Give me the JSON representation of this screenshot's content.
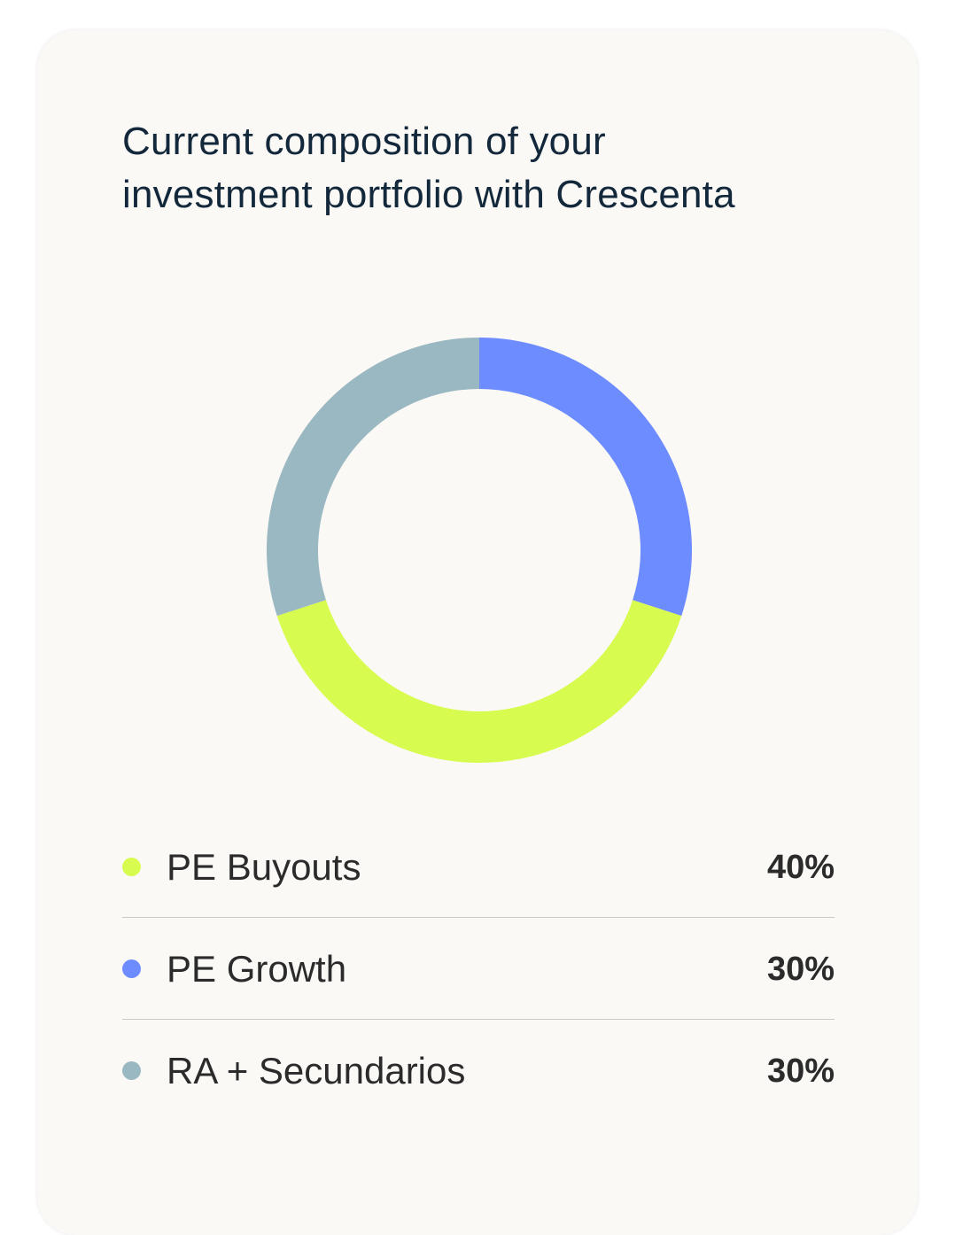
{
  "card": {
    "title_lines": [
      "Current composition of your",
      "investment portfolio with Crescenta"
    ]
  },
  "chart_data": {
    "type": "pie",
    "title": "Current composition of your investment portfolio with Crescenta",
    "donut": true,
    "legend_position": "bottom",
    "series": [
      {
        "name": "PE Buyouts",
        "value": 40,
        "label": "40%",
        "color": "#d8fb50"
      },
      {
        "name": "PE Growth",
        "value": 30,
        "label": "30%",
        "color": "#6c8cff"
      },
      {
        "name": "RA + Secundarios",
        "value": 30,
        "label": "30%",
        "color": "#9ab8c2"
      }
    ]
  }
}
